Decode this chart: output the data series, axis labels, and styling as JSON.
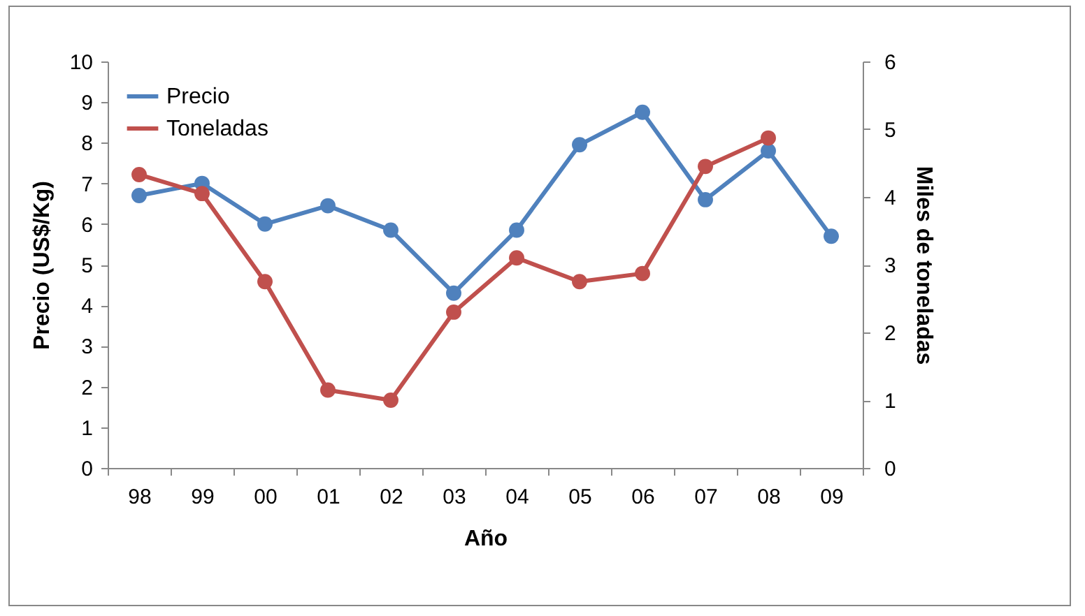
{
  "chart_data": {
    "type": "line",
    "xlabel": "Año",
    "ylabel": "Precio (US$/Kg)",
    "y2label": "Miles de toneladas",
    "categories": [
      "98",
      "99",
      "00",
      "01",
      "02",
      "03",
      "04",
      "05",
      "06",
      "07",
      "08",
      "09"
    ],
    "series": [
      {
        "name": "Precio",
        "color": "#4f81bd",
        "values": [
          6.7,
          7.0,
          6.0,
          6.45,
          5.85,
          4.3,
          5.85,
          7.95,
          8.75,
          6.6,
          7.8,
          5.7
        ]
      },
      {
        "name": "Toneladas",
        "color": "#c0504d",
        "axis": "y2",
        "values": [
          4.33,
          4.05,
          2.75,
          1.15,
          1.0,
          2.3,
          3.1,
          2.75,
          2.87,
          4.45,
          4.87,
          null
        ]
      }
    ],
    "ylim": [
      0,
      10
    ],
    "yticks": [
      0,
      1,
      2,
      3,
      4,
      5,
      6,
      7,
      8,
      9,
      10
    ],
    "y2lim": [
      0,
      6
    ],
    "y2ticks": [
      0,
      1,
      2,
      3,
      4,
      5,
      6
    ],
    "grid": false,
    "legend": "top left",
    "marker": "circle",
    "line_style": "solid"
  }
}
